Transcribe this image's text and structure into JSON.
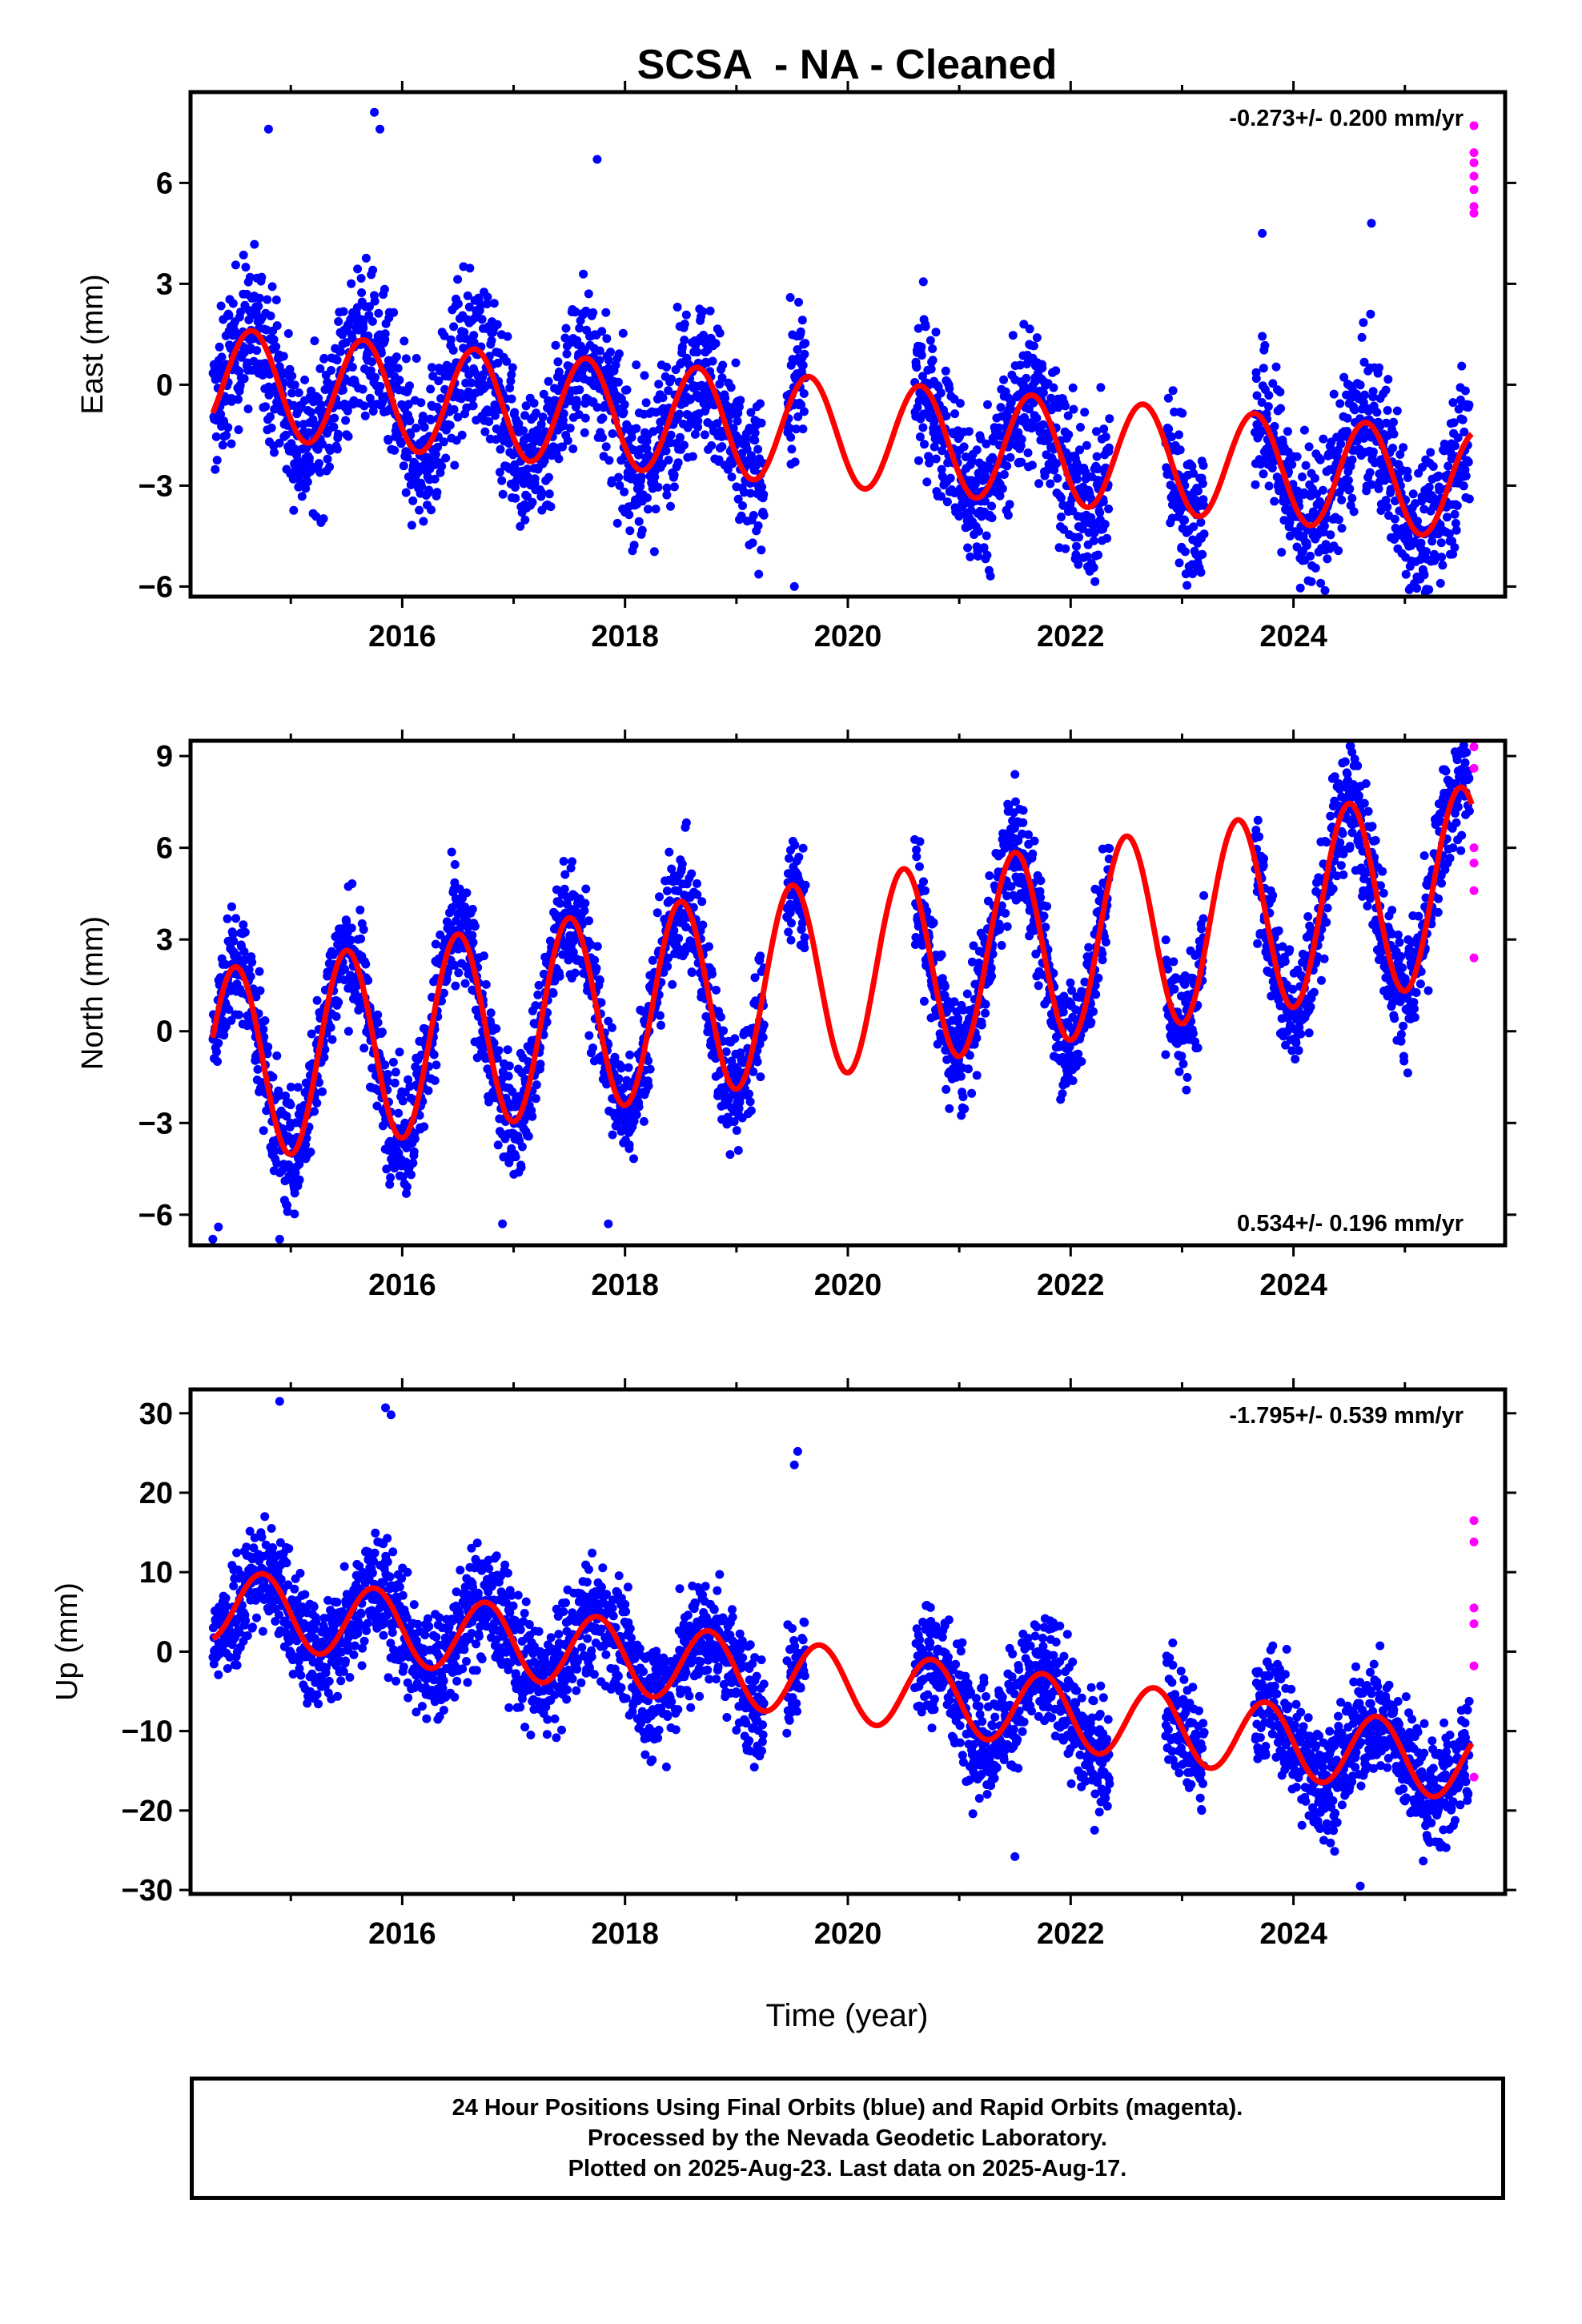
{
  "footer": {
    "line1": "24 Hour Positions Using Final Orbits (blue) and Rapid Orbits (magenta).",
    "line2": "Processed by the Nevada Geodetic Laboratory.",
    "line3": "Plotted on 2025-Aug-23. Last data on 2025-Aug-17."
  },
  "chart_data": [
    {
      "type": "scatter",
      "title": "SCSA  - NA - Cleaned",
      "xlabel": "",
      "ylabel": "East (mm)",
      "xlim": [
        2014.1,
        2025.9
      ],
      "ylim": [
        -6.3,
        8.7
      ],
      "xticks": [
        2016,
        2018,
        2020,
        2022,
        2024
      ],
      "yticks": [
        -6,
        -3,
        0,
        3,
        6
      ],
      "rate_text": "-0.273+/- 0.200 mm/yr",
      "rate_position": "top-right",
      "grid": false,
      "colors": {
        "final": "#0000ff",
        "rapid": "#ff00ff",
        "model": "#ff0000"
      },
      "model": {
        "start": 2014.3,
        "end": 2025.6,
        "offset": 0.1,
        "trend": -0.273,
        "annual_amplitude": 1.6,
        "peak_phase": 0.65
      },
      "data_segments": [
        [
          2014.3,
          2019.25
        ],
        [
          2019.45,
          2019.62
        ],
        [
          2020.6,
          2022.35
        ],
        [
          2022.85,
          2023.2
        ],
        [
          2023.65,
          2025.58
        ]
      ],
      "scatter_sd": 1.1,
      "outliers": [
        [
          2015.75,
          8.1
        ],
        [
          2015.8,
          7.6
        ],
        [
          2014.8,
          7.6
        ],
        [
          2017.75,
          6.7
        ],
        [
          2019.52,
          -6.0
        ],
        [
          2023.72,
          4.5
        ],
        [
          2023.15,
          -5.5
        ],
        [
          2024.7,
          4.8
        ]
      ],
      "rapid_points": [
        [
          2025.62,
          7.7
        ],
        [
          2025.62,
          6.9
        ],
        [
          2025.62,
          6.6
        ],
        [
          2025.62,
          6.2
        ],
        [
          2025.62,
          5.8
        ],
        [
          2025.62,
          5.3
        ],
        [
          2025.62,
          5.1
        ]
      ],
      "point_count": 2900
    },
    {
      "type": "scatter",
      "title": "",
      "xlabel": "",
      "ylabel": "North (mm)",
      "xlim": [
        2014.1,
        2025.9
      ],
      "ylim": [
        -7.0,
        9.5
      ],
      "xticks": [
        2016,
        2018,
        2020,
        2022,
        2024
      ],
      "yticks": [
        -6,
        -3,
        0,
        3,
        6,
        9
      ],
      "rate_text": "0.534+/- 0.196 mm/yr",
      "rate_position": "bottom-right",
      "grid": false,
      "colors": {
        "final": "#0000ff",
        "rapid": "#ff00ff",
        "model": "#ff0000"
      },
      "model": {
        "start": 2014.3,
        "end": 2025.6,
        "offset": -1.2,
        "trend": 0.534,
        "annual_amplitude": 3.2,
        "peak_phase": 0.5
      },
      "data_segments": [
        [
          2014.3,
          2019.25
        ],
        [
          2019.45,
          2019.62
        ],
        [
          2020.6,
          2022.35
        ],
        [
          2022.85,
          2023.2
        ],
        [
          2023.65,
          2025.58
        ]
      ],
      "scatter_sd": 0.95,
      "outliers": [
        [
          2014.3,
          -6.8
        ],
        [
          2014.35,
          -6.4
        ],
        [
          2014.9,
          -6.8
        ],
        [
          2016.9,
          -6.3
        ],
        [
          2017.85,
          -6.3
        ],
        [
          2021.5,
          8.4
        ],
        [
          2024.55,
          8.9
        ]
      ],
      "rapid_points": [
        [
          2025.62,
          9.3
        ],
        [
          2025.62,
          8.6
        ],
        [
          2025.62,
          6.0
        ],
        [
          2025.62,
          5.5
        ],
        [
          2025.62,
          4.6
        ],
        [
          2025.62,
          2.4
        ]
      ],
      "point_count": 2900
    },
    {
      "type": "scatter",
      "title": "",
      "xlabel": "Time (year)",
      "ylabel": "Up (mm)",
      "xlim": [
        2014.1,
        2025.9
      ],
      "ylim": [
        -30.5,
        33
      ],
      "xticks": [
        2016,
        2018,
        2020,
        2022,
        2024
      ],
      "yticks": [
        -30,
        -20,
        -10,
        0,
        10,
        20,
        30
      ],
      "rate_text": "-1.795+/- 0.539 mm/yr",
      "rate_position": "top-right",
      "grid": false,
      "colors": {
        "final": "#0000ff",
        "rapid": "#ff00ff",
        "model": "#ff0000"
      },
      "model": {
        "start": 2014.3,
        "end": 2025.6,
        "offset": 6.0,
        "trend": -1.795,
        "annual_amplitude": 4.6,
        "peak_phase": 0.75
      },
      "data_segments": [
        [
          2014.3,
          2019.25
        ],
        [
          2019.45,
          2019.62
        ],
        [
          2020.6,
          2022.35
        ],
        [
          2022.85,
          2023.2
        ],
        [
          2023.65,
          2025.58
        ]
      ],
      "scatter_sd": 3.6,
      "outliers": [
        [
          2014.9,
          31.5
        ],
        [
          2015.85,
          30.7
        ],
        [
          2015.9,
          29.8
        ],
        [
          2019.52,
          23.5
        ],
        [
          2019.55,
          25.2
        ],
        [
          2021.5,
          -25.8
        ],
        [
          2024.6,
          -29.5
        ]
      ],
      "rapid_points": [
        [
          2025.62,
          16.5
        ],
        [
          2025.62,
          13.8
        ],
        [
          2025.62,
          5.5
        ],
        [
          2025.62,
          3.5
        ],
        [
          2025.62,
          -1.8
        ],
        [
          2025.62,
          -15.8
        ]
      ],
      "point_count": 2900
    }
  ]
}
